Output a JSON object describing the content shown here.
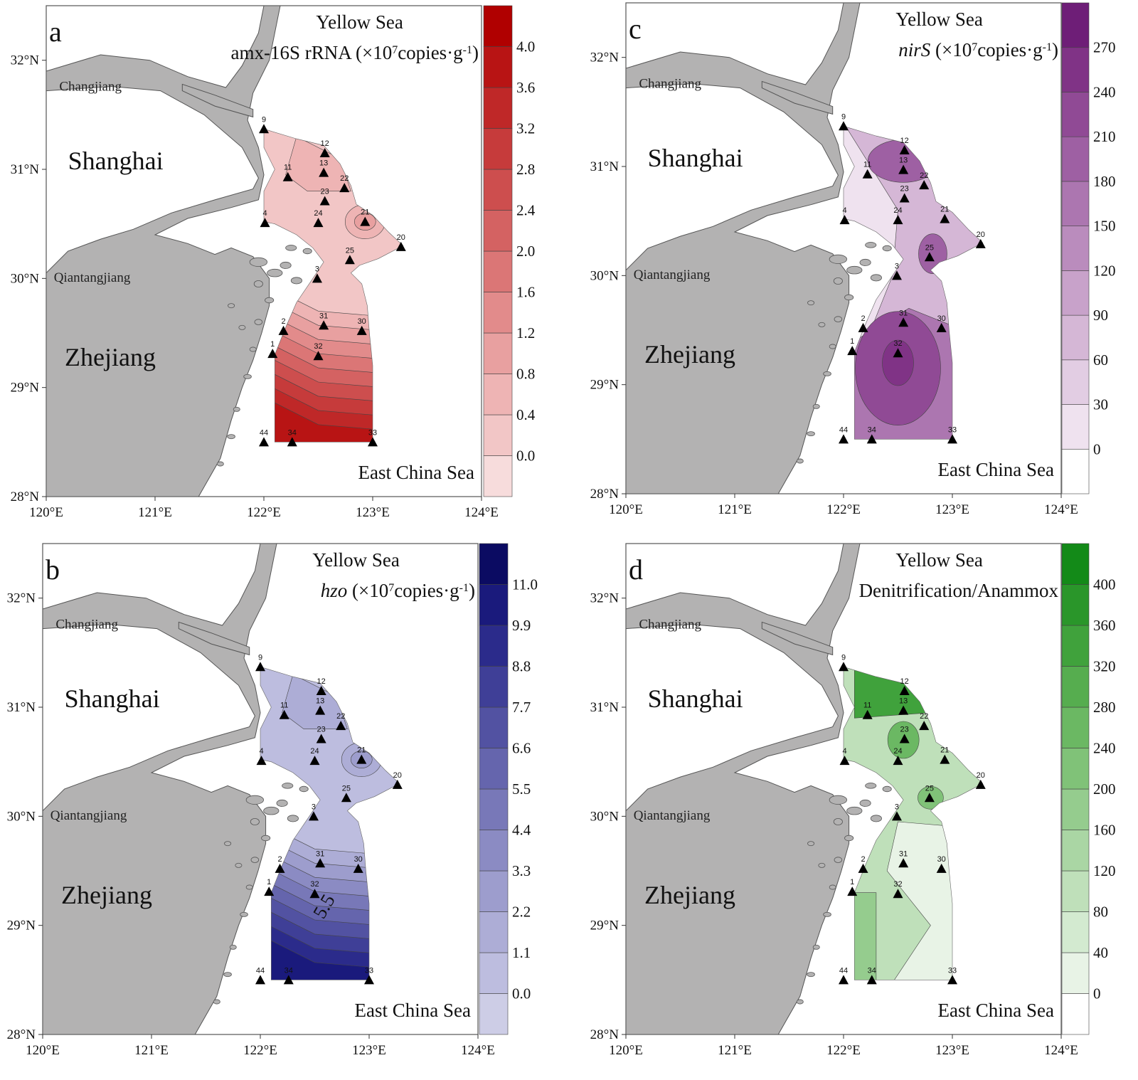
{
  "map_extent": {
    "lon": [
      120,
      124
    ],
    "lat": [
      28,
      32.5
    ]
  },
  "ticks": {
    "lon": [
      {
        "v": 120,
        "label": "120°E"
      },
      {
        "v": 121,
        "label": "121°E"
      },
      {
        "v": 122,
        "label": "122°E"
      },
      {
        "v": 123,
        "label": "123°E"
      },
      {
        "v": 124,
        "label": "124°E"
      }
    ],
    "lat": [
      {
        "v": 28,
        "label": "28°N"
      },
      {
        "v": 29,
        "label": "29°N"
      },
      {
        "v": 30,
        "label": "30°N"
      },
      {
        "v": 31,
        "label": "31°N"
      },
      {
        "v": 32,
        "label": "32°N"
      }
    ]
  },
  "places": {
    "shanghai": "Shanghai",
    "zhejiang": "Zhejiang",
    "changjiang": "Changjiang",
    "qiantangjiang": "Qiantangjiang",
    "yellow_sea": "Yellow Sea",
    "east_china_sea": "East China Sea"
  },
  "stations": [
    {
      "id": "9",
      "lon": 122.0,
      "lat": 31.37
    },
    {
      "id": "11",
      "lon": 122.22,
      "lat": 30.93
    },
    {
      "id": "12",
      "lon": 122.56,
      "lat": 31.15
    },
    {
      "id": "13",
      "lon": 122.55,
      "lat": 30.97
    },
    {
      "id": "22",
      "lon": 122.74,
      "lat": 30.83
    },
    {
      "id": "23",
      "lon": 122.56,
      "lat": 30.71
    },
    {
      "id": "4",
      "lon": 122.01,
      "lat": 30.51
    },
    {
      "id": "24",
      "lon": 122.5,
      "lat": 30.51
    },
    {
      "id": "21",
      "lon": 122.93,
      "lat": 30.52
    },
    {
      "id": "20",
      "lon": 123.26,
      "lat": 30.29
    },
    {
      "id": "25",
      "lon": 122.79,
      "lat": 30.17
    },
    {
      "id": "3",
      "lon": 122.49,
      "lat": 30.0
    },
    {
      "id": "31",
      "lon": 122.55,
      "lat": 29.57
    },
    {
      "id": "30",
      "lon": 122.9,
      "lat": 29.52
    },
    {
      "id": "2",
      "lon": 122.18,
      "lat": 29.52
    },
    {
      "id": "1",
      "lon": 122.08,
      "lat": 29.31
    },
    {
      "id": "32",
      "lon": 122.5,
      "lat": 29.29
    },
    {
      "id": "44",
      "lon": 122.0,
      "lat": 28.5
    },
    {
      "id": "34",
      "lon": 122.26,
      "lat": 28.5
    },
    {
      "id": "33",
      "lon": 123.0,
      "lat": 28.5
    }
  ],
  "panels": [
    {
      "letter": "a",
      "title_plain": "amx-16S rRNA (×10",
      "title_sup": "7",
      "title_mid": "copies·g",
      "title_sup2": "-1",
      "title_end": ")",
      "title_italic": false,
      "colorbar": {
        "levels": [
          "0.0",
          "0.4",
          "0.8",
          "1.2",
          "1.6",
          "2.0",
          "2.4",
          "2.8",
          "3.2",
          "3.6",
          "4.0"
        ],
        "colors": [
          "#f7dcdc",
          "#f2c6c6",
          "#eeb4b4",
          "#e8a0a0",
          "#e28b8b",
          "#db7676",
          "#d46262",
          "#cd4e4e",
          "#c63b3b",
          "#bf2828",
          "#b81414",
          "#b00000"
        ]
      }
    },
    {
      "letter": "b",
      "title_plain": "",
      "title_italic_text": "hzo",
      "title_sup": "7",
      "title_mid": "copies·g",
      "title_sup2": "-1",
      "title_end": ")",
      "title_italic": true,
      "contour_label": "5.5",
      "colorbar": {
        "levels": [
          "0.0",
          "1.1",
          "2.2",
          "3.3",
          "4.4",
          "5.5",
          "6.6",
          "7.7",
          "8.8",
          "9.9",
          "11.0"
        ],
        "colors": [
          "#cdcde6",
          "#bdbddf",
          "#adadd6",
          "#9d9dcd",
          "#8b8bc3",
          "#7878b8",
          "#6565ad",
          "#5252a2",
          "#3f3f97",
          "#2b2b8b",
          "#1a1a7c",
          "#0b0b62"
        ]
      }
    },
    {
      "letter": "c",
      "title_plain": "",
      "title_italic_text": "nirS",
      "title_sup": "7",
      "title_mid": "copies·g",
      "title_sup2": "-1",
      "title_end": ")",
      "title_italic": true,
      "colorbar": {
        "levels": [
          "0",
          "30",
          "60",
          "90",
          "120",
          "150",
          "180",
          "210",
          "240",
          "270"
        ],
        "colors": [
          "#ffffff",
          "#efe2ef",
          "#e2cde3",
          "#d5b7d6",
          "#c8a2ca",
          "#ba8cbd",
          "#ac76b0",
          "#9e60a3",
          "#904a95",
          "#803386",
          "#6e1e77"
        ]
      }
    },
    {
      "letter": "d",
      "title_plain": "Denitrification/Anammox",
      "title_italic": false,
      "colorbar": {
        "levels": [
          "0",
          "40",
          "80",
          "120",
          "160",
          "200",
          "240",
          "280",
          "320",
          "360",
          "400"
        ],
        "colors": [
          "#ffffff",
          "#e8f3e6",
          "#d3ead0",
          "#bfe0ba",
          "#aad6a4",
          "#95cc8e",
          "#80c278",
          "#6bb863",
          "#56ad4f",
          "#40a23c",
          "#2a962a",
          "#138a18"
        ]
      }
    }
  ]
}
